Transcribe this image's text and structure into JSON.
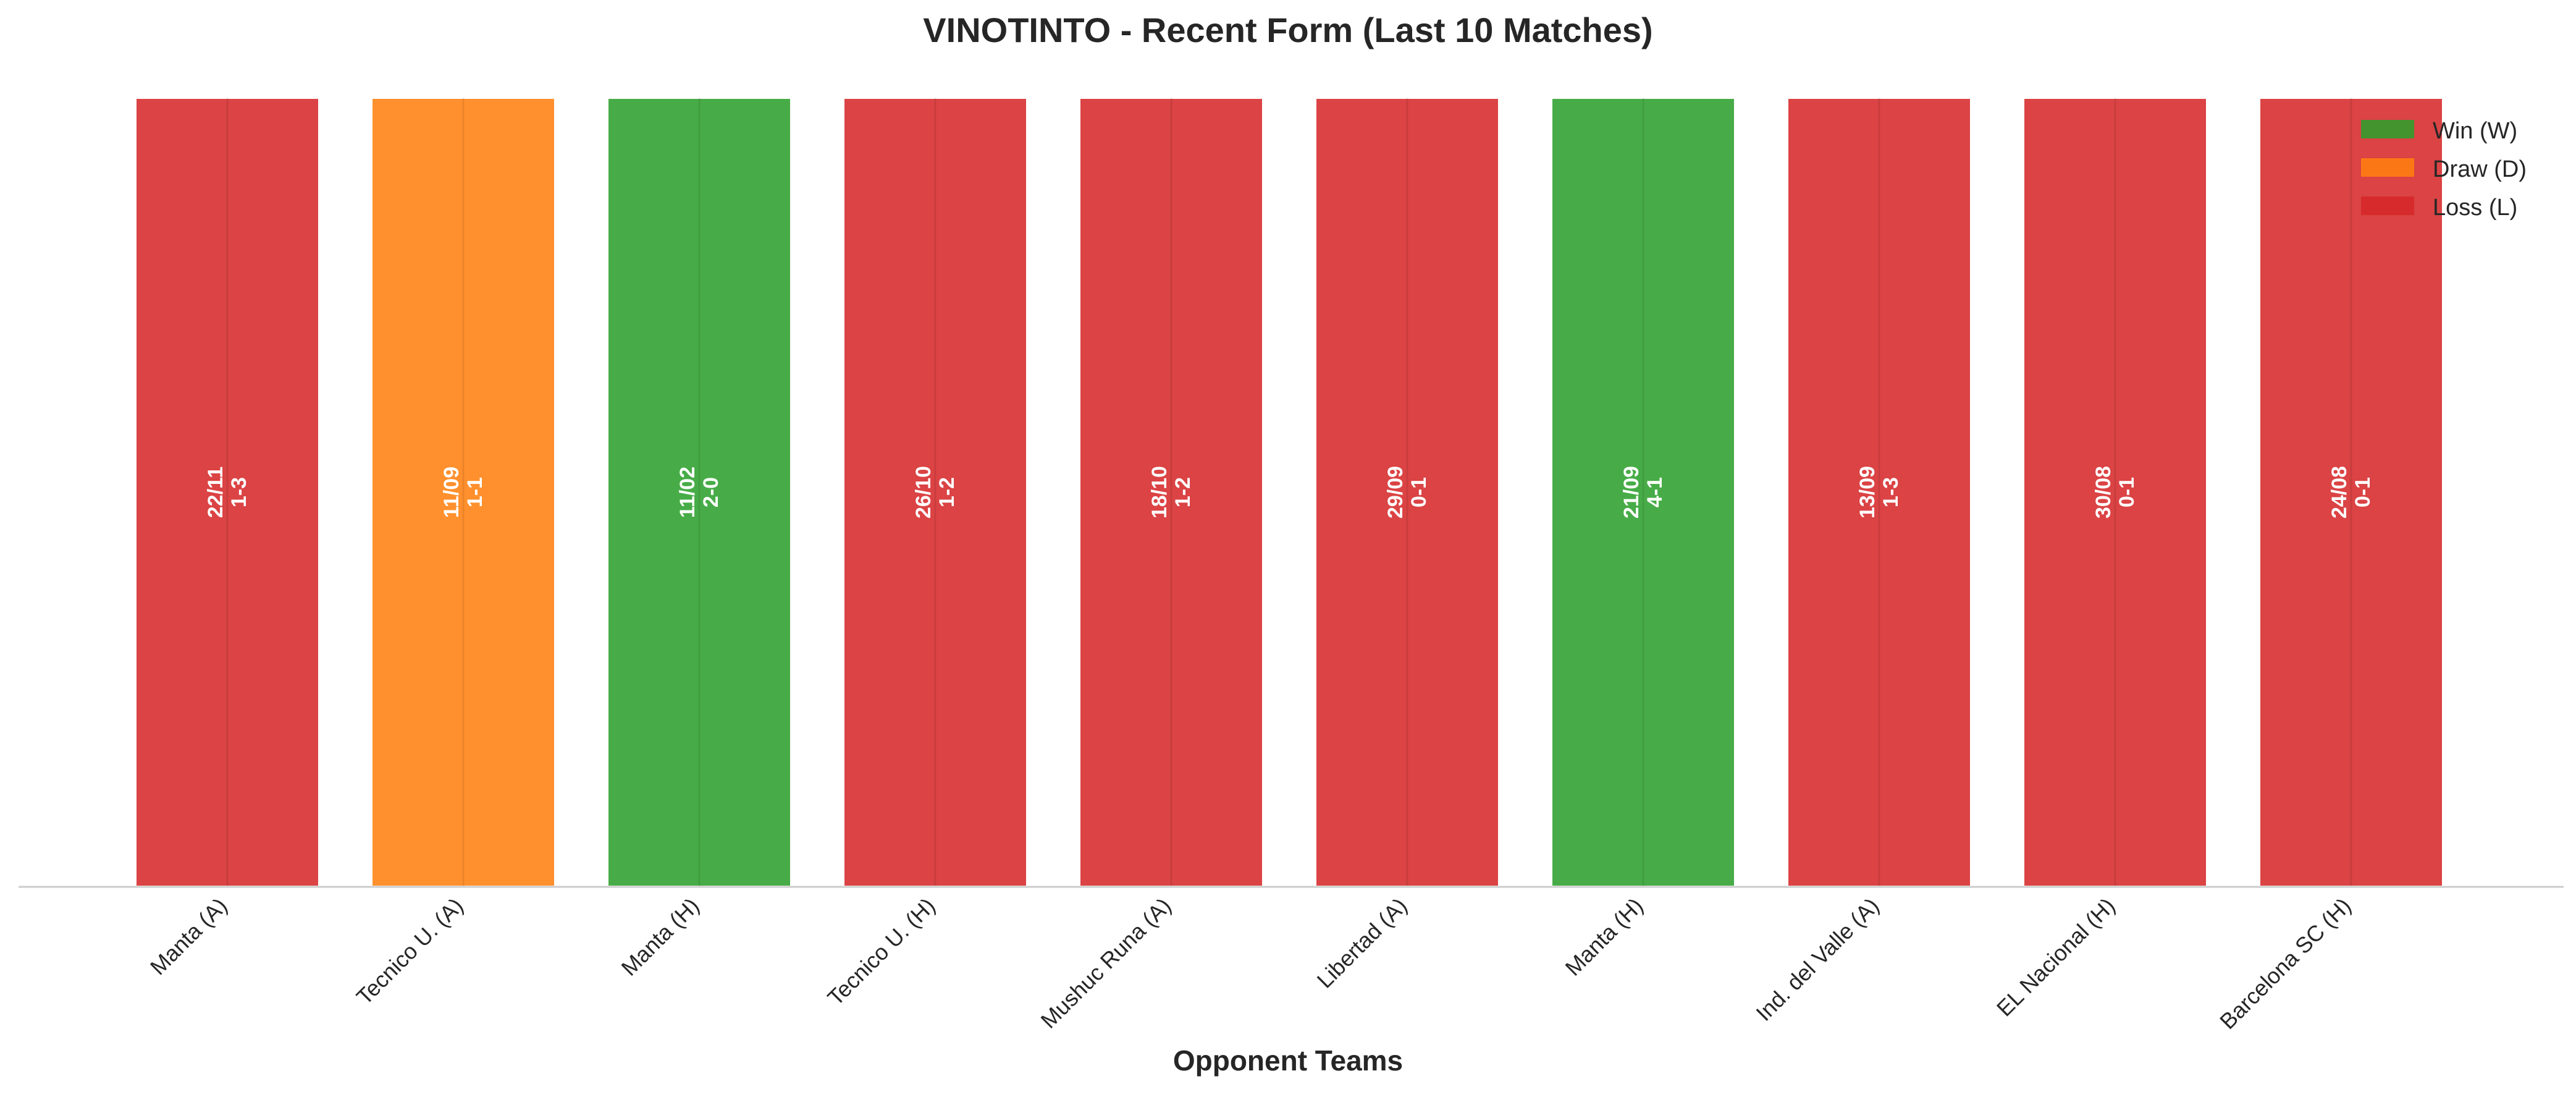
{
  "chart_data": {
    "type": "bar",
    "title": "VINOTINTO - Recent Form (Last 10 Matches)",
    "xlabel": "Opponent Teams",
    "ylabel": "",
    "ylim": [
      0,
      1
    ],
    "grid": false,
    "legend_position": "top-right",
    "categories": [
      "Manta (A)",
      "Tecnico U. (A)",
      "Manta (H)",
      "Tecnico U. (H)",
      "Mushuc Runa (A)",
      "Libertad (A)",
      "Manta (H)",
      "Ind. del Valle (A)",
      "EL Nacional (H)",
      "Barcelona SC (H)"
    ],
    "values": [
      1,
      1,
      1,
      1,
      1,
      1,
      1,
      1,
      1,
      1
    ],
    "results": [
      "L",
      "D",
      "W",
      "L",
      "L",
      "L",
      "W",
      "L",
      "L",
      "L"
    ],
    "dates": [
      "22/11",
      "11/09",
      "11/02",
      "26/10",
      "18/10",
      "29/09",
      "21/09",
      "13/09",
      "30/08",
      "24/08"
    ],
    "scores": [
      "1-3",
      "1-1",
      "2-0",
      "1-2",
      "1-2",
      "0-1",
      "4-1",
      "1-3",
      "0-1",
      "0-1"
    ],
    "legend": [
      {
        "key": "W",
        "label": "Win (W)",
        "color": "#2ca02c"
      },
      {
        "key": "D",
        "label": "Draw (D)",
        "color": "#ff7f0e"
      },
      {
        "key": "L",
        "label": "Loss (L)",
        "color": "#d62728"
      }
    ]
  }
}
